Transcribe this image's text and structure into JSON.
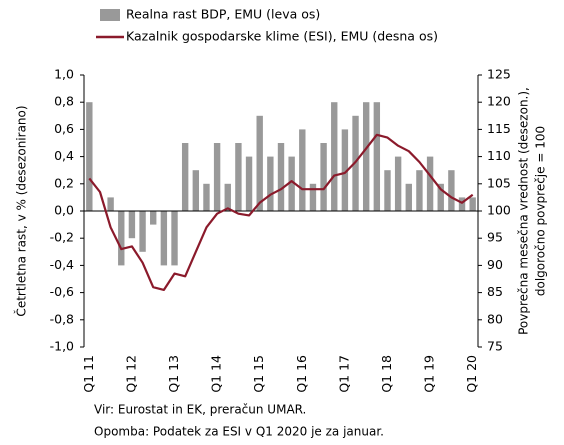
{
  "chart_data": {
    "type": "bar",
    "categories": [
      "Q1 11",
      null,
      null,
      null,
      "Q1 12",
      null,
      null,
      null,
      "Q1 13",
      null,
      null,
      null,
      "Q1 14",
      null,
      null,
      null,
      "Q1 15",
      null,
      null,
      null,
      "Q1 16",
      null,
      null,
      null,
      "Q1 17",
      null,
      null,
      null,
      "Q1 18",
      null,
      null,
      null,
      "Q1 19",
      null,
      null,
      null,
      "Q1 20"
    ],
    "series": [
      {
        "name": "Realna rast BDP, EMU (leva os)",
        "type": "bar",
        "color": "#999999",
        "values": [
          0.8,
          0.0,
          0.1,
          -0.4,
          -0.2,
          -0.3,
          -0.1,
          -0.4,
          -0.4,
          0.5,
          0.3,
          0.2,
          0.5,
          0.2,
          0.5,
          0.4,
          0.7,
          0.4,
          0.5,
          0.4,
          0.6,
          0.2,
          0.5,
          0.8,
          0.6,
          0.7,
          0.8,
          0.8,
          0.3,
          0.4,
          0.2,
          0.3,
          0.4,
          0.2,
          0.3,
          0.1,
          0.1
        ]
      },
      {
        "name": "Kazalnik gospodarske klime (ESI), EMU (desna os)",
        "type": "line",
        "axis": "y2",
        "color": "#8b1a2b",
        "values": [
          106,
          103.5,
          97,
          93,
          93.5,
          90.5,
          86,
          85.5,
          88.5,
          88,
          92.5,
          97,
          99.5,
          100.5,
          99.5,
          99.2,
          101.5,
          103,
          104,
          105.5,
          104,
          104,
          104,
          106.5,
          107,
          109,
          111.5,
          114,
          113.5,
          112,
          111,
          109,
          106.5,
          104,
          102.5,
          101.5,
          103
        ]
      }
    ],
    "ylim": [
      -1,
      1
    ],
    "yticks": [
      {
        "value": -1,
        "label": "-1,0"
      },
      {
        "value": -0.8,
        "label": "-0,8"
      },
      {
        "value": -0.6,
        "label": "-0,6"
      },
      {
        "value": -0.4,
        "label": "-0,4"
      },
      {
        "value": -0.2,
        "label": "-0,2"
      },
      {
        "value": 0,
        "label": "0,0"
      },
      {
        "value": 0.2,
        "label": "0,2"
      },
      {
        "value": 0.4,
        "label": "0,4"
      },
      {
        "value": 0.6,
        "label": "0,6"
      },
      {
        "value": 0.8,
        "label": "0,8"
      },
      {
        "value": 1,
        "label": "1,0"
      }
    ],
    "y2lim": [
      75,
      125
    ],
    "y2ticks": [
      75,
      80,
      85,
      90,
      95,
      100,
      105,
      110,
      115,
      120,
      125
    ],
    "ylabel": "Četrtletna rast, v % (desezonirano)",
    "y2label": [
      "Povprečna mesečna vrednost (desezon.),",
      "dolgoročno povprečje = 100"
    ],
    "notes": [
      "Vir: Eurostat in EK, preračun UMAR.",
      "Opomba: Podatek za ESI v Q1 2020 je za januar."
    ]
  }
}
